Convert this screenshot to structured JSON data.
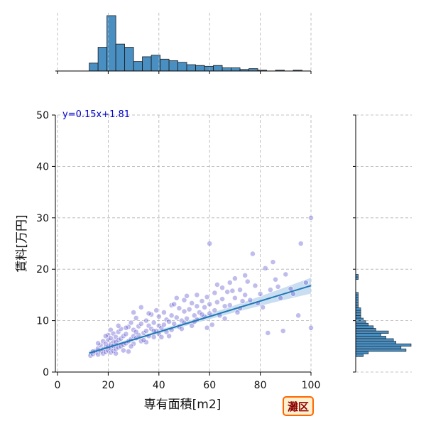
{
  "chart_data": {
    "type": "scatter",
    "title": "",
    "xlabel": "専有面積[m2]",
    "ylabel": "賃料[万円]",
    "xlim": [
      0,
      100
    ],
    "ylim": [
      0,
      50
    ],
    "x_ticks": [
      0,
      20,
      40,
      60,
      80,
      100
    ],
    "y_ticks": [
      0,
      10,
      20,
      30,
      40,
      50
    ],
    "x_tick_labels": [
      "0",
      "20",
      "40",
      "60",
      "80",
      "100"
    ],
    "y_tick_labels": [
      "0",
      "10",
      "20",
      "30",
      "40",
      "50"
    ],
    "grid": true,
    "annotation": "y=0.15x+1.81",
    "badge": "灘区",
    "regression": {
      "slope": 0.15,
      "intercept": 1.81,
      "x_start": 12.5,
      "x_end": 100
    },
    "points": [
      [
        13,
        3.2
      ],
      [
        14,
        3.5
      ],
      [
        15,
        3.8
      ],
      [
        15,
        4.1
      ],
      [
        16,
        3.4
      ],
      [
        16,
        4.6
      ],
      [
        17,
        4.0
      ],
      [
        17,
        5.2
      ],
      [
        18,
        3.6
      ],
      [
        18,
        4.4
      ],
      [
        18,
        6.0
      ],
      [
        19,
        3.9
      ],
      [
        19,
        4.8
      ],
      [
        19,
        5.5
      ],
      [
        20,
        4.2
      ],
      [
        20,
        5.0
      ],
      [
        20,
        6.3
      ],
      [
        20,
        7.2
      ],
      [
        21,
        3.8
      ],
      [
        21,
        4.6
      ],
      [
        21,
        5.4
      ],
      [
        21,
        8.2
      ],
      [
        22,
        4.1
      ],
      [
        22,
        5.1
      ],
      [
        22,
        6.0
      ],
      [
        22,
        7.5
      ],
      [
        23,
        4.5
      ],
      [
        23,
        5.8
      ],
      [
        23,
        6.8
      ],
      [
        24,
        4.8
      ],
      [
        24,
        6.2
      ],
      [
        24,
        7.8
      ],
      [
        25,
        5.0
      ],
      [
        25,
        6.5
      ],
      [
        25,
        8.4
      ],
      [
        26,
        5.3
      ],
      [
        26,
        7.0
      ],
      [
        27,
        5.6
      ],
      [
        27,
        7.4
      ],
      [
        28,
        4.0
      ],
      [
        28,
        6.0
      ],
      [
        28,
        8.8
      ],
      [
        29,
        6.4
      ],
      [
        29,
        9.6
      ],
      [
        30,
        5.5
      ],
      [
        30,
        7.0
      ],
      [
        30,
        8.2
      ],
      [
        31,
        6.6
      ],
      [
        31,
        10.5
      ],
      [
        32,
        7.2
      ],
      [
        32,
        8.9
      ],
      [
        33,
        6.0
      ],
      [
        33,
        9.4
      ],
      [
        34,
        7.6
      ],
      [
        35,
        5.8
      ],
      [
        35,
        8.0
      ],
      [
        35,
        10.0
      ],
      [
        36,
        7.0
      ],
      [
        36,
        9.0
      ],
      [
        37,
        8.4
      ],
      [
        37,
        11.2
      ],
      [
        38,
        6.8
      ],
      [
        38,
        9.6
      ],
      [
        39,
        8.0
      ],
      [
        39,
        12.0
      ],
      [
        40,
        7.4
      ],
      [
        40,
        9.0
      ],
      [
        40,
        10.8
      ],
      [
        41,
        8.6
      ],
      [
        42,
        9.2
      ],
      [
        42,
        11.6
      ],
      [
        43,
        7.8
      ],
      [
        43,
        10.2
      ],
      [
        44,
        9.8
      ],
      [
        45,
        8.2
      ],
      [
        45,
        11.0
      ],
      [
        45,
        13.0
      ],
      [
        46,
        9.4
      ],
      [
        47,
        10.6
      ],
      [
        48,
        8.8
      ],
      [
        48,
        12.4
      ],
      [
        49,
        10.0
      ],
      [
        50,
        9.6
      ],
      [
        50,
        11.8
      ],
      [
        50,
        14.0
      ],
      [
        51,
        10.4
      ],
      [
        52,
        12.2
      ],
      [
        53,
        9.0
      ],
      [
        53,
        13.4
      ],
      [
        54,
        11.0
      ],
      [
        55,
        10.2
      ],
      [
        55,
        12.8
      ],
      [
        55,
        15.0
      ],
      [
        56,
        11.6
      ],
      [
        57,
        13.8
      ],
      [
        58,
        10.8
      ],
      [
        58,
        12.6
      ],
      [
        59,
        14.6
      ],
      [
        60,
        11.4
      ],
      [
        60,
        13.2
      ],
      [
        60,
        25.0
      ],
      [
        61,
        9.2
      ],
      [
        62,
        12.0
      ],
      [
        62,
        15.4
      ],
      [
        63,
        13.6
      ],
      [
        64,
        11.0
      ],
      [
        65,
        14.2
      ],
      [
        65,
        16.4
      ],
      [
        66,
        12.8
      ],
      [
        67,
        15.6
      ],
      [
        68,
        13.0
      ],
      [
        68,
        17.4
      ],
      [
        70,
        14.4
      ],
      [
        70,
        18.2
      ],
      [
        71,
        11.6
      ],
      [
        72,
        16.0
      ],
      [
        73,
        13.8
      ],
      [
        74,
        15.0
      ],
      [
        75,
        17.6
      ],
      [
        76,
        14.0
      ],
      [
        77,
        23.0
      ],
      [
        78,
        16.8
      ],
      [
        80,
        15.2
      ],
      [
        81,
        12.6
      ],
      [
        82,
        20.2
      ],
      [
        83,
        7.6
      ],
      [
        84,
        16.0
      ],
      [
        85,
        21.4
      ],
      [
        86,
        18.0
      ],
      [
        88,
        14.4
      ],
      [
        89,
        8.0
      ],
      [
        90,
        19.0
      ],
      [
        93,
        15.2
      ],
      [
        95,
        11.0
      ],
      [
        96,
        25.0
      ],
      [
        98,
        17.4
      ],
      [
        100,
        30.0
      ],
      [
        100,
        8.6
      ],
      [
        14,
        4.0
      ],
      [
        16,
        5.6
      ],
      [
        19,
        7.0
      ],
      [
        21,
        6.6
      ],
      [
        23,
        3.6
      ],
      [
        26,
        4.2
      ],
      [
        27,
        8.6
      ],
      [
        29,
        5.0
      ],
      [
        31,
        7.8
      ],
      [
        34,
        6.2
      ],
      [
        36,
        11.4
      ],
      [
        38,
        8.0
      ],
      [
        41,
        6.8
      ],
      [
        44,
        7.0
      ],
      [
        46,
        13.2
      ],
      [
        49,
        8.4
      ],
      [
        51,
        14.8
      ],
      [
        54,
        9.8
      ],
      [
        57,
        11.2
      ],
      [
        59,
        8.6
      ],
      [
        63,
        17.0
      ],
      [
        66,
        10.4
      ],
      [
        69,
        15.8
      ],
      [
        72,
        12.4
      ],
      [
        74,
        18.8
      ],
      [
        79,
        13.4
      ],
      [
        87,
        16.6
      ],
      [
        92,
        16.2
      ],
      [
        30,
        11.6
      ],
      [
        24,
        9.0
      ],
      [
        33,
        12.6
      ],
      [
        47,
        14.4
      ]
    ],
    "hist_x": {
      "bin_start": 12.5,
      "bin_width": 3.5,
      "counts": [
        10,
        30,
        70,
        34,
        30,
        12,
        18,
        20,
        15,
        13,
        11,
        8,
        7,
        6,
        7,
        4,
        4,
        2,
        3,
        1,
        0,
        1,
        0,
        1,
        0
      ]
    },
    "hist_y": {
      "bin_start": 3.0,
      "bin_width": 0.5,
      "counts": [
        3,
        5,
        20,
        18,
        22,
        16,
        15,
        12,
        10,
        13,
        8,
        7,
        5,
        4,
        3,
        2,
        2,
        2,
        2,
        1,
        1,
        1,
        1,
        1,
        1,
        0,
        0,
        0,
        0,
        0,
        1,
        1
      ]
    }
  },
  "colors": {
    "scatter_fill": "#4b43c8",
    "regression_line": "#1f77b4",
    "ci_band": "#bcd6ee",
    "hist_fill": "#4a8fc2",
    "grid": "#b0b0b0",
    "badge_fill": "#fff0d0",
    "badge_border": "#ff6600"
  }
}
